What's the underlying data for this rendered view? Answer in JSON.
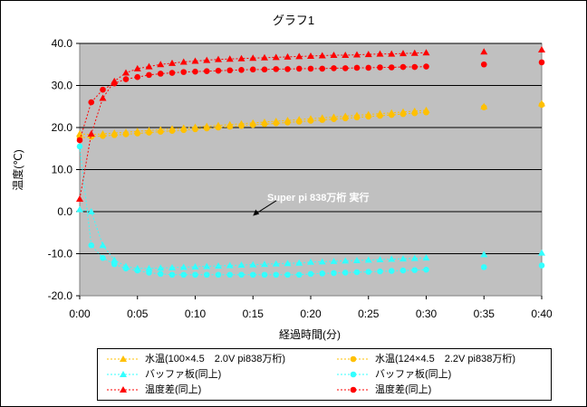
{
  "chart_data": {
    "type": "line",
    "title": "グラフ1",
    "xlabel": "経過時間(分)",
    "ylabel": "温度(℃)",
    "xlim": [
      "0:00",
      "0:40"
    ],
    "ylim": [
      -20,
      40
    ],
    "x_ticks": [
      "0:00",
      "0:05",
      "0:10",
      "0:15",
      "0:20",
      "0:25",
      "0:30",
      "0:35",
      "0:40"
    ],
    "y_ticks": [
      "40.0",
      "30.0",
      "20.0",
      "10.0",
      "0.0",
      "-10.0",
      "-20.0"
    ],
    "grid": true,
    "annotation": {
      "text": "Super pi 838万桁 実行",
      "x": "0:15",
      "y": -1
    },
    "legend_position": "bottom",
    "series": [
      {
        "name": "水温(100×4.5　2.0V pi838万桁)",
        "color": "#ffc000",
        "marker": "triangle",
        "x": [
          "0:00",
          "0:01",
          "0:02",
          "0:03",
          "0:04",
          "0:05",
          "0:06",
          "0:07",
          "0:08",
          "0:09",
          "0:10",
          "0:11",
          "0:12",
          "0:13",
          "0:14",
          "0:15",
          "0:16",
          "0:17",
          "0:18",
          "0:19",
          "0:20",
          "0:21",
          "0:22",
          "0:23",
          "0:24",
          "0:25",
          "0:26",
          "0:27",
          "0:28",
          "0:29",
          "0:30",
          "0:35",
          "0:40"
        ],
        "values": [
          18.5,
          18.3,
          18.5,
          18.7,
          18.9,
          19.1,
          19.3,
          19.5,
          19.7,
          19.9,
          20.1,
          20.3,
          20.5,
          20.7,
          20.9,
          21.1,
          21.3,
          21.5,
          21.7,
          21.9,
          22.1,
          22.3,
          22.5,
          22.7,
          22.9,
          23.1,
          23.3,
          23.5,
          23.7,
          23.9,
          24.1,
          25.0,
          25.7
        ]
      },
      {
        "name": "水温(124×4.5　2.2V pi838万桁)",
        "color": "#ffc000",
        "marker": "circle",
        "x": [
          "0:00",
          "0:01",
          "0:02",
          "0:03",
          "0:04",
          "0:05",
          "0:06",
          "0:07",
          "0:08",
          "0:09",
          "0:10",
          "0:11",
          "0:12",
          "0:13",
          "0:14",
          "0:15",
          "0:16",
          "0:17",
          "0:18",
          "0:19",
          "0:20",
          "0:21",
          "0:22",
          "0:23",
          "0:24",
          "0:25",
          "0:26",
          "0:27",
          "0:28",
          "0:29",
          "0:30",
          "0:35",
          "0:40"
        ],
        "values": [
          17.5,
          17.8,
          18.0,
          18.2,
          18.4,
          18.6,
          18.8,
          19.0,
          19.2,
          19.4,
          19.6,
          19.8,
          20.0,
          20.2,
          20.4,
          20.6,
          20.8,
          21.0,
          21.2,
          21.4,
          21.6,
          21.8,
          22.0,
          22.2,
          22.4,
          22.6,
          22.8,
          23.0,
          23.2,
          23.4,
          23.6,
          24.8,
          25.4
        ]
      },
      {
        "name": "バッファ板(同上)",
        "color": "#33ffff",
        "marker": "triangle",
        "x": [
          "0:00",
          "0:01",
          "0:02",
          "0:03",
          "0:04",
          "0:05",
          "0:06",
          "0:07",
          "0:08",
          "0:09",
          "0:10",
          "0:11",
          "0:12",
          "0:13",
          "0:14",
          "0:15",
          "0:16",
          "0:17",
          "0:18",
          "0:19",
          "0:20",
          "0:21",
          "0:22",
          "0:23",
          "0:24",
          "0:25",
          "0:26",
          "0:27",
          "0:28",
          "0:29",
          "0:30",
          "0:35",
          "0:40"
        ],
        "values": [
          0.5,
          0.0,
          -8.0,
          -11.5,
          -13.0,
          -13.5,
          -13.5,
          -13.4,
          -13.3,
          -13.2,
          -13.1,
          -13.0,
          -12.9,
          -12.8,
          -12.7,
          -12.6,
          -12.5,
          -12.4,
          -12.3,
          -12.2,
          -12.0,
          -11.9,
          -11.8,
          -11.7,
          -11.6,
          -11.5,
          -11.4,
          -11.3,
          -11.2,
          -11.1,
          -11.0,
          -10.2,
          -9.8
        ]
      },
      {
        "name": "バッファ板(同上)",
        "color": "#33ffff",
        "marker": "circle",
        "x": [
          "0:00",
          "0:01",
          "0:02",
          "0:03",
          "0:04",
          "0:05",
          "0:06",
          "0:07",
          "0:08",
          "0:09",
          "0:10",
          "0:11",
          "0:12",
          "0:13",
          "0:14",
          "0:15",
          "0:16",
          "0:17",
          "0:18",
          "0:19",
          "0:20",
          "0:21",
          "0:22",
          "0:23",
          "0:24",
          "0:25",
          "0:26",
          "0:27",
          "0:28",
          "0:29",
          "0:30",
          "0:35",
          "0:40"
        ],
        "values": [
          15.5,
          -8.0,
          -11.0,
          -12.5,
          -13.5,
          -14.0,
          -14.5,
          -14.8,
          -15.0,
          -15.0,
          -15.0,
          -15.0,
          -15.0,
          -15.0,
          -15.0,
          -15.0,
          -15.0,
          -15.0,
          -15.0,
          -15.0,
          -14.8,
          -14.7,
          -14.6,
          -14.5,
          -14.4,
          -14.3,
          -14.2,
          -14.1,
          -14.0,
          -13.9,
          -13.8,
          -13.2,
          -12.8
        ]
      },
      {
        "name": "温度差(同上)",
        "color": "#ff0000",
        "marker": "triangle",
        "x": [
          "0:00",
          "0:01",
          "0:02",
          "0:03",
          "0:04",
          "0:05",
          "0:06",
          "0:07",
          "0:08",
          "0:09",
          "0:10",
          "0:11",
          "0:12",
          "0:13",
          "0:14",
          "0:15",
          "0:16",
          "0:17",
          "0:18",
          "0:19",
          "0:20",
          "0:21",
          "0:22",
          "0:23",
          "0:24",
          "0:25",
          "0:26",
          "0:27",
          "0:28",
          "0:29",
          "0:30",
          "0:35",
          "0:40"
        ],
        "values": [
          3.0,
          18.5,
          27.0,
          31.0,
          33.0,
          34.0,
          34.5,
          35.0,
          35.3,
          35.6,
          35.8,
          36.0,
          36.2,
          36.3,
          36.4,
          36.5,
          36.6,
          36.7,
          36.8,
          36.9,
          37.0,
          37.1,
          37.2,
          37.2,
          37.3,
          37.4,
          37.5,
          37.5,
          37.6,
          37.7,
          37.8,
          38.0,
          38.5
        ]
      },
      {
        "name": "温度差(同上)",
        "color": "#ff0000",
        "marker": "circle",
        "x": [
          "0:00",
          "0:01",
          "0:02",
          "0:03",
          "0:04",
          "0:05",
          "0:06",
          "0:07",
          "0:08",
          "0:09",
          "0:10",
          "0:11",
          "0:12",
          "0:13",
          "0:14",
          "0:15",
          "0:16",
          "0:17",
          "0:18",
          "0:19",
          "0:20",
          "0:21",
          "0:22",
          "0:23",
          "0:24",
          "0:25",
          "0:26",
          "0:27",
          "0:28",
          "0:29",
          "0:30",
          "0:35",
          "0:40"
        ],
        "values": [
          17.0,
          26.0,
          29.0,
          30.5,
          31.5,
          32.0,
          32.5,
          32.8,
          33.0,
          33.2,
          33.3,
          33.4,
          33.5,
          33.6,
          33.7,
          33.8,
          33.8,
          33.9,
          33.9,
          34.0,
          34.0,
          34.0,
          34.1,
          34.1,
          34.2,
          34.2,
          34.3,
          34.3,
          34.4,
          34.4,
          34.5,
          35.0,
          35.5
        ]
      }
    ]
  }
}
